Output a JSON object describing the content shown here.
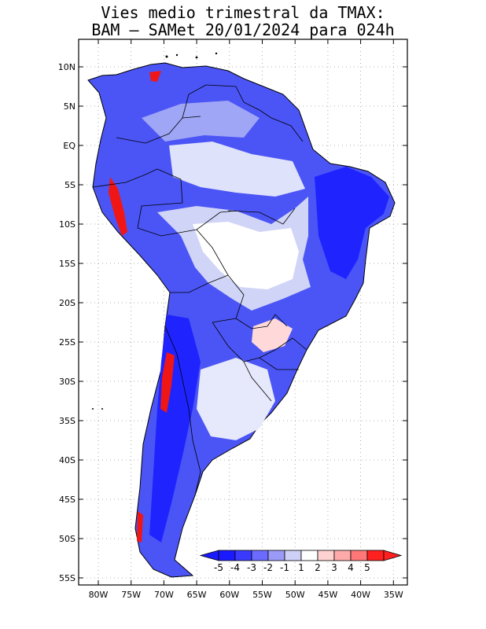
{
  "title": {
    "line1": "Vies medio trimestral da TMAX:",
    "line2": "BAM – SAMet 20/01/2024  para 024h"
  },
  "map": {
    "lat_labels": [
      "10N",
      "5N",
      "EQ",
      "5S",
      "10S",
      "15S",
      "20S",
      "25S",
      "30S",
      "35S",
      "40S",
      "45S",
      "50S",
      "55S"
    ],
    "lon_labels": [
      "80W",
      "75W",
      "70W",
      "65W",
      "60W",
      "55W",
      "50W",
      "45W",
      "40W",
      "35W"
    ]
  },
  "colorbar": {
    "labels": [
      "-5",
      "-4",
      "-3",
      "-2",
      "-1",
      "1",
      "2",
      "3",
      "4",
      "5"
    ],
    "colors": [
      "#1a1aff",
      "#3a3aff",
      "#6b6bff",
      "#9b9bf7",
      "#cfd0f7",
      "#ffffff",
      "#ffd2d2",
      "#ffaaaa",
      "#ff7777",
      "#ff2020"
    ]
  }
}
